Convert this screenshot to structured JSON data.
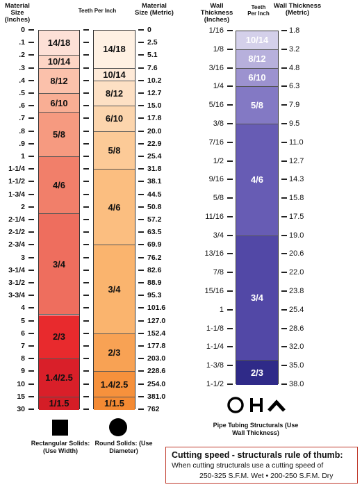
{
  "solids": {
    "header_left": "Material Size (Inches)",
    "header_mid": "Teeth Per Inch",
    "header_right": "Material Size (Metric)",
    "sizes": [
      {
        "in": "0",
        "mm": "0"
      },
      {
        "in": ".1",
        "mm": "2.5"
      },
      {
        "in": ".2",
        "mm": "5.1"
      },
      {
        "in": ".3",
        "mm": "7.6"
      },
      {
        "in": ".4",
        "mm": "10.2"
      },
      {
        "in": ".5",
        "mm": "12.7"
      },
      {
        "in": ".6",
        "mm": "15.0"
      },
      {
        "in": ".7",
        "mm": "17.8"
      },
      {
        "in": ".8",
        "mm": "20.0"
      },
      {
        "in": ".9",
        "mm": "22.9"
      },
      {
        "in": "1",
        "mm": "25.4"
      },
      {
        "in": "1-1/4",
        "mm": "31.8"
      },
      {
        "in": "1-1/2",
        "mm": "38.1"
      },
      {
        "in": "1-3/4",
        "mm": "44.5"
      },
      {
        "in": "2",
        "mm": "50.8"
      },
      {
        "in": "2-1/4",
        "mm": "57.2"
      },
      {
        "in": "2-1/2",
        "mm": "63.5"
      },
      {
        "in": "2-3/4",
        "mm": "69.9"
      },
      {
        "in": "3",
        "mm": "76.2"
      },
      {
        "in": "3-1/4",
        "mm": "82.6"
      },
      {
        "in": "3-1/2",
        "mm": "88.9"
      },
      {
        "in": "3-3/4",
        "mm": "95.3"
      },
      {
        "in": "4",
        "mm": "101.6"
      },
      {
        "in": "5",
        "mm": "127.0"
      },
      {
        "in": "6",
        "mm": "152.4"
      },
      {
        "in": "7",
        "mm": "177.8"
      },
      {
        "in": "8",
        "mm": "203.0"
      },
      {
        "in": "9",
        "mm": "228.6"
      },
      {
        "in": "10",
        "mm": "254.0"
      },
      {
        "in": "15",
        "mm": "381.0"
      },
      {
        "in": "30",
        "mm": "762"
      }
    ],
    "rect_bands": [
      {
        "label": "14/18",
        "from": 0,
        "to": 2,
        "color": "#fde0d6"
      },
      {
        "label": "10/14",
        "from": 2,
        "to": 3,
        "color": "#fdd5c5"
      },
      {
        "label": "8/12",
        "from": 3,
        "to": 5,
        "color": "#fbc1ab"
      },
      {
        "label": "6/10",
        "from": 5,
        "to": 6.5,
        "color": "#f9ae94"
      },
      {
        "label": "5/8",
        "from": 6.5,
        "to": 10,
        "color": "#f69a80"
      },
      {
        "label": "4/6",
        "from": 10,
        "to": 14.5,
        "color": "#f17f6a"
      },
      {
        "label": "3/4",
        "from": 14.5,
        "to": 22.5,
        "color": "#ee6e5e"
      },
      {
        "label": "2/3",
        "from": 22.5,
        "to": 26,
        "color": "#e82a2d"
      },
      {
        "label": "1.4/2.5",
        "from": 26,
        "to": 29,
        "color": "#d91f29"
      },
      {
        "label": "1/1.5",
        "from": 29,
        "to": 30,
        "color": "#d41d26"
      }
    ],
    "round_bands": [
      {
        "label": "14/18",
        "from": 0,
        "to": 3,
        "color": "#fff1e3"
      },
      {
        "label": "10/14",
        "from": 3,
        "to": 4,
        "color": "#feead8"
      },
      {
        "label": "8/12",
        "from": 4,
        "to": 6,
        "color": "#fde0c4"
      },
      {
        "label": "6/10",
        "from": 6,
        "to": 8,
        "color": "#fcd5ad"
      },
      {
        "label": "5/8",
        "from": 8,
        "to": 11,
        "color": "#fcca97"
      },
      {
        "label": "4/6",
        "from": 11,
        "to": 17,
        "color": "#fbbe80"
      },
      {
        "label": "3/4",
        "from": 17,
        "to": 24,
        "color": "#fab46e"
      },
      {
        "label": "2/3",
        "from": 24,
        "to": 27,
        "color": "#f8a254"
      },
      {
        "label": "1.4/2.5",
        "from": 27,
        "to": 29,
        "color": "#f6913c"
      },
      {
        "label": "1/1.5",
        "from": 29,
        "to": 30,
        "color": "#f48a33"
      }
    ],
    "rect_caption": "Rectangular Solids: (Use Width)",
    "round_caption": "Round Solids: (Use Diameter)"
  },
  "structurals": {
    "header_left": "Wall Thickness (Inches)",
    "header_mid": "Teeth Per Inch",
    "header_right": "Wall Thickness (Metric)",
    "sizes": [
      {
        "in": "1/16",
        "mm": "1.8"
      },
      {
        "in": "1/8",
        "mm": "3.2"
      },
      {
        "in": "3/16",
        "mm": "4.8"
      },
      {
        "in": "1/4",
        "mm": "6.3"
      },
      {
        "in": "5/16",
        "mm": "7.9"
      },
      {
        "in": "3/8",
        "mm": "9.5"
      },
      {
        "in": "7/16",
        "mm": "11.0"
      },
      {
        "in": "1/2",
        "mm": "12.7"
      },
      {
        "in": "9/16",
        "mm": "14.3"
      },
      {
        "in": "5/8",
        "mm": "15.8"
      },
      {
        "in": "11/16",
        "mm": "17.5"
      },
      {
        "in": "3/4",
        "mm": "19.0"
      },
      {
        "in": "13/16",
        "mm": "20.6"
      },
      {
        "in": "7/8",
        "mm": "22.0"
      },
      {
        "in": "15/16",
        "mm": "23.8"
      },
      {
        "in": "1",
        "mm": "25.4"
      },
      {
        "in": "1-1/8",
        "mm": "28.6"
      },
      {
        "in": "1-1/4",
        "mm": "32.0"
      },
      {
        "in": "1-3/8",
        "mm": "35.0"
      },
      {
        "in": "1-1/2",
        "mm": "38.0"
      }
    ],
    "bands": [
      {
        "label": "10/14",
        "from": 0,
        "to": 1,
        "color": "#d4d0ea",
        "light": true
      },
      {
        "label": "8/12",
        "from": 1,
        "to": 2,
        "color": "#b7b0dc",
        "light": true
      },
      {
        "label": "6/10",
        "from": 2,
        "to": 3,
        "color": "#9c92cf",
        "light": true
      },
      {
        "label": "5/8",
        "from": 3,
        "to": 5,
        "color": "#8379c4",
        "light": true
      },
      {
        "label": "4/6",
        "from": 5,
        "to": 11,
        "color": "#675cb4",
        "light": true
      },
      {
        "label": "3/4",
        "from": 11,
        "to": 17.7,
        "color": "#5248a6",
        "light": true
      },
      {
        "label": "2/3",
        "from": 17.7,
        "to": 19,
        "color": "#2f2a88",
        "light": true
      }
    ],
    "caption": "Pipe Tubing Structurals (Use Wall Thickness)"
  },
  "rule": {
    "title": "Cutting speed - structurals rule of thumb:",
    "line1": "When cutting structurals use a cutting speed of",
    "line2": "250-325 S.F.M. Wet  •  200-250 S.F.M. Dry"
  },
  "colors": {
    "border_red": "#c0392b",
    "tick": "#222222"
  }
}
